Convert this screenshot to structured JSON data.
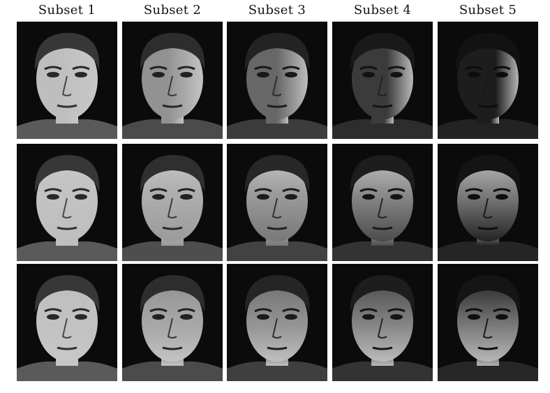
{
  "columns": [
    {
      "title": "Subset 1"
    },
    {
      "title": "Subset 2"
    },
    {
      "title": "Subset 3"
    },
    {
      "title": "Subset 4"
    },
    {
      "title": "Subset 5"
    }
  ],
  "rows": [
    {
      "cells": [
        {
          "lighting": "front",
          "shadow": 0.0
        },
        {
          "lighting": "slight-left",
          "shadow": 0.25
        },
        {
          "lighting": "left",
          "shadow": 0.5
        },
        {
          "lighting": "strong-left",
          "shadow": 0.75
        },
        {
          "lighting": "extreme-left",
          "shadow": 0.92
        }
      ]
    },
    {
      "cells": [
        {
          "lighting": "front",
          "shadow": 0.0
        },
        {
          "lighting": "slight-top",
          "shadow": 0.2
        },
        {
          "lighting": "top",
          "shadow": 0.4
        },
        {
          "lighting": "strong-top",
          "shadow": 0.65
        },
        {
          "lighting": "extreme-top",
          "shadow": 0.88
        }
      ]
    },
    {
      "cells": [
        {
          "lighting": "front",
          "shadow": 0.0
        },
        {
          "lighting": "slight-bottom",
          "shadow": 0.25
        },
        {
          "lighting": "bottom",
          "shadow": 0.45
        },
        {
          "lighting": "strong-bottom",
          "shadow": 0.65
        },
        {
          "lighting": "extreme-bottom",
          "shadow": 0.85
        }
      ]
    }
  ]
}
